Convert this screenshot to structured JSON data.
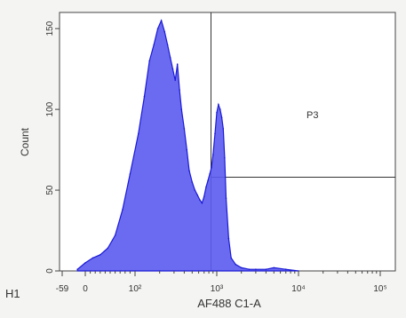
{
  "chart_data": {
    "type": "area",
    "title": "",
    "histogram_label": "H1",
    "xlabel": "AF488 C1-A",
    "ylabel": "Count",
    "x_scale": "biexponential",
    "x_tick_labels": [
      "-59",
      "0",
      "10²",
      "10³",
      "10⁴",
      "10⁵"
    ],
    "x_tick_values": [
      -59,
      0,
      100,
      1000,
      10000,
      100000
    ],
    "ylim": [
      0,
      160
    ],
    "y_ticks": [
      0,
      50,
      100,
      150
    ],
    "y_tick_labels": [
      "0",
      "50",
      "100",
      "150"
    ],
    "grid": false,
    "fill_color": "#5b5bf0",
    "line_color": "#1a1ad6",
    "gate": {
      "name": "P3",
      "x_start": 850,
      "x_end": 100000,
      "count_divider": 58
    },
    "x": [
      -20,
      0,
      15,
      30,
      45,
      60,
      75,
      90,
      110,
      130,
      150,
      170,
      190,
      210,
      230,
      250,
      270,
      290,
      310,
      330,
      350,
      370,
      400,
      430,
      460,
      500,
      540,
      580,
      620,
      660,
      700,
      740,
      780,
      820,
      860,
      900,
      950,
      1000,
      1050,
      1100,
      1150,
      1200,
      1250,
      1300,
      1400,
      1500,
      1700,
      2000,
      2500,
      3000,
      4000,
      5000,
      7000,
      10000
    ],
    "y": [
      1,
      5,
      8,
      10,
      14,
      22,
      38,
      60,
      85,
      108,
      130,
      140,
      150,
      155,
      148,
      140,
      132,
      125,
      118,
      128,
      112,
      100,
      88,
      75,
      62,
      55,
      50,
      47,
      44,
      42,
      46,
      52,
      56,
      60,
      64,
      72,
      85,
      98,
      103,
      100,
      95,
      88,
      70,
      45,
      20,
      8,
      4,
      2,
      1,
      1,
      1,
      2,
      1,
      0
    ]
  }
}
